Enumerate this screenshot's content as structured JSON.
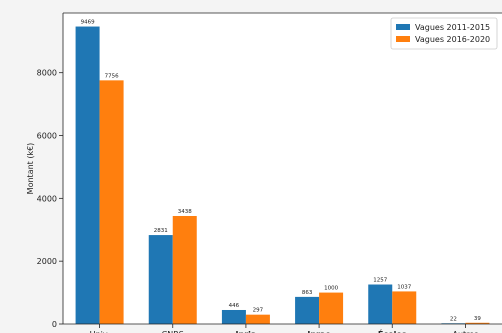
{
  "chart_data": {
    "type": "bar",
    "categories": [
      "Univ.",
      "CNRS",
      "Inria",
      "Inrae",
      "Écoles",
      "Autres"
    ],
    "bold_categories": [
      "Inria",
      "Inrae",
      "Écoles"
    ],
    "series": [
      {
        "name": "Vagues 2011-2015",
        "color": "#1f77b4",
        "values": [
          9469,
          2831,
          446,
          863,
          1257,
          22
        ]
      },
      {
        "name": "Vagues 2016-2020",
        "color": "#ff7f0e",
        "values": [
          7756,
          3438,
          297,
          1000,
          1037,
          39
        ]
      }
    ],
    "ylabel": "Montant (k€)",
    "ylim": [
      0,
      9900
    ],
    "yticks": [
      0,
      2000,
      4000,
      6000,
      8000
    ],
    "legend_position": "top-right",
    "grid": false
  }
}
